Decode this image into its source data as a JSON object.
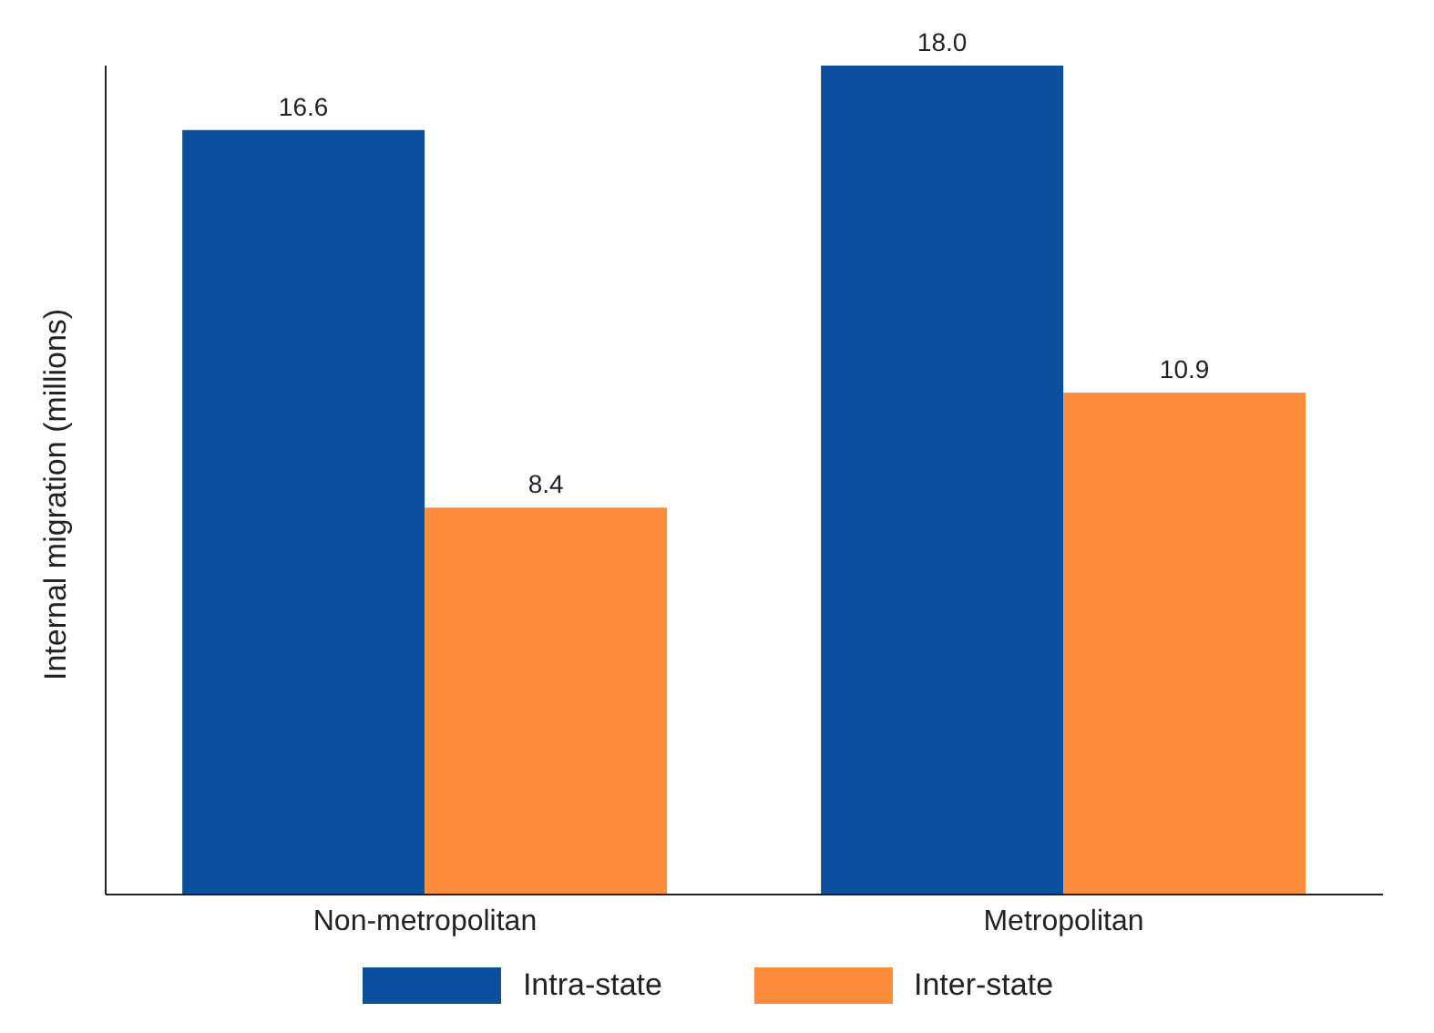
{
  "chart_data": {
    "type": "bar",
    "ylabel": "Internal migration (millions)",
    "categories": [
      "Non-metropolitan",
      "Metropolitan"
    ],
    "series": [
      {
        "name": "Intra-state",
        "color": "#0b4f9e",
        "values": [
          16.6,
          18
        ],
        "value_labels": [
          "16.6",
          "18.0"
        ]
      },
      {
        "name": "Inter-state",
        "color": "#fd8d3c",
        "values": [
          8.4,
          10.9
        ],
        "value_labels": [
          "8.4",
          "10.9"
        ]
      }
    ],
    "legend": "bottom",
    "grid": false
  }
}
